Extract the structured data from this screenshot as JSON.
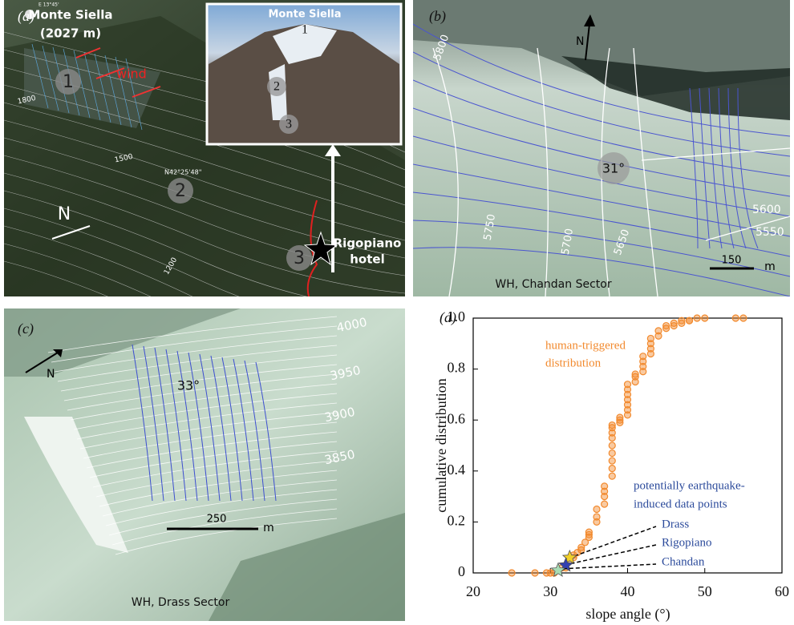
{
  "panels": {
    "a": {
      "label": "(a)",
      "peak": "Monte Siella",
      "elevation": "(2027 m)",
      "coord_e": "E 13°45'",
      "wind": "wind",
      "sites": [
        "1",
        "2",
        "3"
      ],
      "north": "N",
      "contours": [
        "1800",
        "1500",
        "1200"
      ],
      "coord_n": "N42°25'48\"",
      "hotel": [
        "Rigopiano",
        "hotel"
      ],
      "inset_title": "Monte Siella",
      "inset_sites": [
        "1",
        "2",
        "3"
      ]
    },
    "b": {
      "label": "(b)",
      "north": "N",
      "contours": [
        "5800",
        "5750",
        "5700",
        "5650",
        "5600",
        "5550"
      ],
      "slope": "31°",
      "scale": "150",
      "unit": "m",
      "caption": "WH, Chandan Sector"
    },
    "c": {
      "label": "(c)",
      "north": "N",
      "contours": [
        "4000",
        "3950",
        "3900",
        "3850"
      ],
      "slope": "33°",
      "scale": "250",
      "unit": "m",
      "caption": "WH, Drass Sector"
    }
  },
  "chart_data": {
    "type": "scatter",
    "panel_label": "(d)",
    "x_label": "slope angle (°)",
    "y_label": "cumulative distribution",
    "xlim": [
      20,
      60
    ],
    "ylim": [
      0,
      1
    ],
    "xticks": [
      20,
      30,
      40,
      50,
      60
    ],
    "yticks": [
      0,
      0.2,
      0.4,
      0.6,
      0.8,
      {
        "value": 1,
        "label": "1.0"
      }
    ],
    "points": {
      "color": "#f28a2e",
      "x": [
        25,
        28,
        29.5,
        30,
        30.5,
        31,
        31.5,
        32,
        32,
        32.5,
        33,
        33,
        33.5,
        34,
        34,
        34.5,
        35,
        35,
        35,
        36,
        36,
        36,
        37,
        37,
        37,
        37,
        38,
        38,
        38,
        38,
        38,
        38,
        38,
        38,
        38,
        39,
        39,
        39,
        40,
        40,
        40,
        40,
        40,
        40,
        40,
        41,
        41,
        41,
        42,
        42,
        42,
        42,
        43,
        43,
        43,
        43,
        44,
        44,
        45,
        45,
        46,
        46,
        47,
        47,
        48,
        48,
        49,
        50,
        54,
        55
      ],
      "y": [
        0,
        0,
        0,
        0,
        0,
        0.01,
        0.02,
        0.02,
        0.03,
        0.05,
        0.06,
        0.07,
        0.08,
        0.09,
        0.1,
        0.12,
        0.14,
        0.15,
        0.16,
        0.2,
        0.22,
        0.25,
        0.27,
        0.3,
        0.32,
        0.34,
        0.38,
        0.41,
        0.44,
        0.47,
        0.5,
        0.53,
        0.55,
        0.57,
        0.58,
        0.59,
        0.6,
        0.61,
        0.62,
        0.64,
        0.66,
        0.68,
        0.7,
        0.72,
        0.74,
        0.75,
        0.77,
        0.78,
        0.79,
        0.81,
        0.83,
        0.85,
        0.86,
        0.88,
        0.9,
        0.92,
        0.93,
        0.95,
        0.96,
        0.97,
        0.97,
        0.98,
        0.98,
        0.99,
        0.99,
        0.99,
        1,
        1,
        1,
        1
      ]
    },
    "points_annotation": [
      "human-triggered",
      "distribution"
    ],
    "stars_annotation": [
      "potentially earthquake-",
      "induced data points"
    ],
    "stars": [
      {
        "name": "Drass",
        "x": 32.5,
        "y": 0.06,
        "color": "#f2d028"
      },
      {
        "name": "Rigopiano",
        "x": 32,
        "y": 0.03,
        "color": "#3340b0"
      },
      {
        "name": "Chandan",
        "x": 31,
        "y": 0.01,
        "color": "#a8dcb4"
      }
    ]
  }
}
